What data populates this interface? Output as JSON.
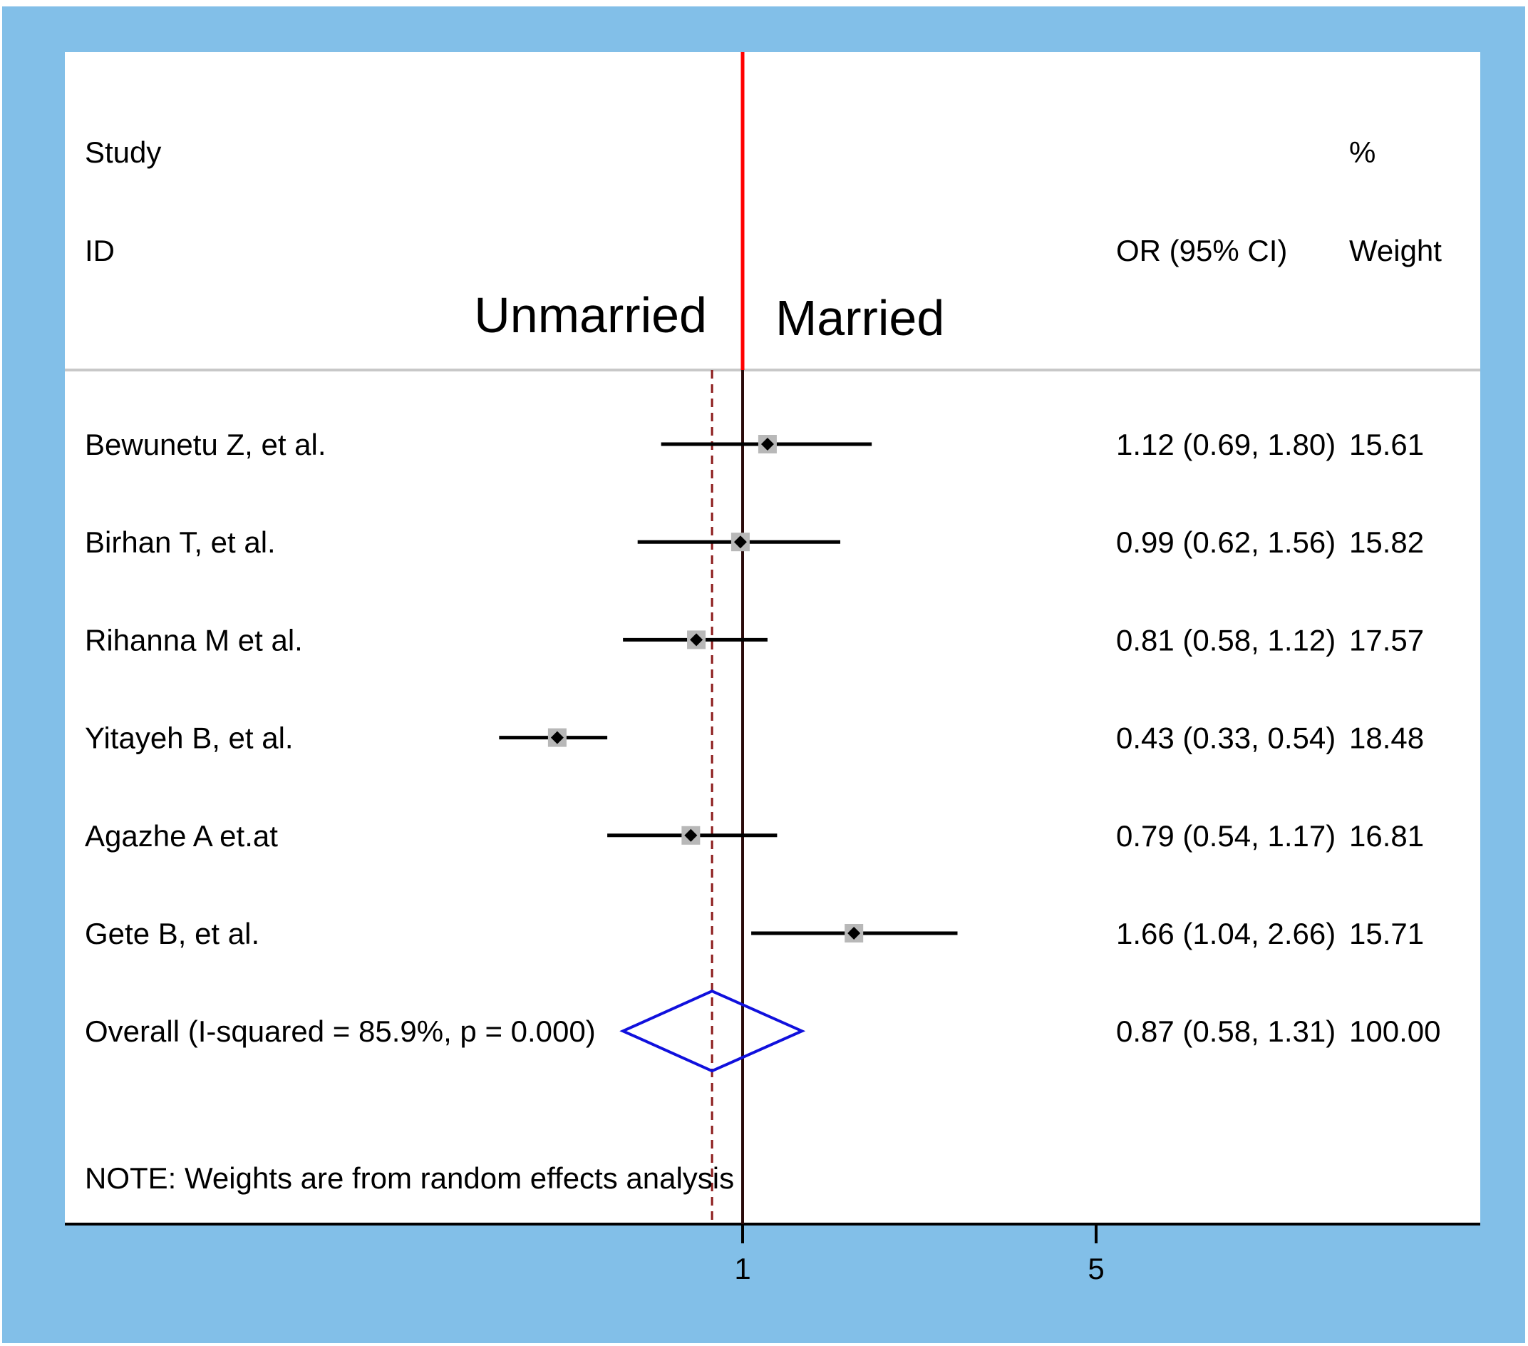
{
  "chart_data": {
    "type": "forest",
    "headers": {
      "study": "Study",
      "id": "ID",
      "or_ci": "OR (95% CI)",
      "pct": "%",
      "weight": "Weight"
    },
    "side_labels": {
      "left": "Unmarried",
      "right": "Married"
    },
    "studies": [
      {
        "name": "Bewunetu Z, et al.",
        "or": 1.12,
        "lo": 0.69,
        "hi": 1.8,
        "or_ci": "1.12 (0.69, 1.80)",
        "weight": "15.61"
      },
      {
        "name": "Birhan T, et al.",
        "or": 0.99,
        "lo": 0.62,
        "hi": 1.56,
        "or_ci": "0.99 (0.62, 1.56)",
        "weight": "15.82"
      },
      {
        "name": "Rihanna M et al.",
        "or": 0.81,
        "lo": 0.58,
        "hi": 1.12,
        "or_ci": "0.81 (0.58, 1.12)",
        "weight": "17.57"
      },
      {
        "name": "Yitayeh B, et al.",
        "or": 0.43,
        "lo": 0.33,
        "hi": 0.54,
        "or_ci": "0.43 (0.33, 0.54)",
        "weight": "18.48"
      },
      {
        "name": "Agazhe A et.at",
        "or": 0.79,
        "lo": 0.54,
        "hi": 1.17,
        "or_ci": "0.79 (0.54, 1.17)",
        "weight": "16.81"
      },
      {
        "name": "Gete B, et al.",
        "or": 1.66,
        "lo": 1.04,
        "hi": 2.66,
        "or_ci": "1.66 (1.04, 2.66)",
        "weight": "15.71"
      }
    ],
    "overall": {
      "name": "Overall  (I-squared = 85.9%, p = 0.000)",
      "or": 0.87,
      "lo": 0.58,
      "hi": 1.31,
      "or_ci": "0.87 (0.58, 1.31)",
      "weight": "100.00"
    },
    "note": "NOTE: Weights are from random effects analysis",
    "x_axis": {
      "scale": "log",
      "ticks": [
        1,
        5
      ],
      "tick_labels": [
        "1",
        "5"
      ]
    },
    "null_line": 1,
    "colors": {
      "background": "#82bfe8",
      "null_line": "#ff0000",
      "overall_line": "#8b1a1a",
      "diamond": "#1010dd",
      "ci_line": "#000000",
      "weight_box": "#b8b8b8"
    }
  }
}
